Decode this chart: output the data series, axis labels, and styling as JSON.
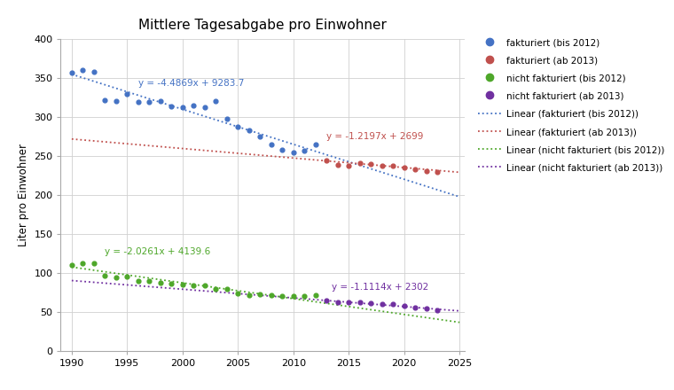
{
  "title": "Mittlere Tagesabgabe pro Einwohner",
  "ylabel": "Liter pro Einwohner",
  "xlim": [
    1989,
    2025.5
  ],
  "ylim": [
    0,
    400
  ],
  "yticks": [
    0,
    50,
    100,
    150,
    200,
    250,
    300,
    350,
    400
  ],
  "xticks": [
    1990,
    1995,
    2000,
    2005,
    2010,
    2015,
    2020,
    2025
  ],
  "fakturiert_bis2012_x": [
    1990,
    1991,
    1992,
    1993,
    1994,
    1995,
    1996,
    1997,
    1998,
    1999,
    2000,
    2001,
    2002,
    2003,
    2004,
    2005,
    2006,
    2007,
    2008,
    2009,
    2010,
    2011,
    2012
  ],
  "fakturiert_bis2012_y": [
    357,
    360,
    358,
    322,
    320,
    330,
    319,
    319,
    320,
    314,
    313,
    315,
    313,
    321,
    298,
    288,
    283,
    275,
    265,
    258,
    255,
    257,
    265
  ],
  "fakturiert_ab2013_x": [
    2013,
    2014,
    2015,
    2016,
    2017,
    2018,
    2019,
    2020,
    2021,
    2022,
    2023
  ],
  "fakturiert_ab2013_y": [
    244,
    239,
    237,
    241,
    240,
    238,
    237,
    235,
    233,
    231,
    229
  ],
  "nicht_fakturiert_bis2012_x": [
    1990,
    1991,
    1992,
    1993,
    1994,
    1995,
    1996,
    1997,
    1998,
    1999,
    2000,
    2001,
    2002,
    2003,
    2004,
    2005,
    2006,
    2007,
    2008,
    2009,
    2010,
    2011,
    2012
  ],
  "nicht_fakturiert_bis2012_y": [
    110,
    113,
    112,
    97,
    94,
    96,
    90,
    90,
    88,
    86,
    85,
    84,
    84,
    80,
    80,
    74,
    72,
    73,
    72,
    71,
    70,
    71,
    72
  ],
  "nicht_fakturiert_ab2013_x": [
    2013,
    2014,
    2015,
    2016,
    2017,
    2018,
    2019,
    2020,
    2021,
    2022,
    2023
  ],
  "nicht_fakturiert_ab2013_y": [
    65,
    63,
    62,
    62,
    61,
    60,
    60,
    58,
    56,
    54,
    52
  ],
  "color_fakturiert_bis2012": "#4472C4",
  "color_fakturiert_ab2013": "#C0504D",
  "color_nicht_fakturiert_bis2012": "#4EA72A",
  "color_nicht_fakturiert_ab2013": "#7030A0",
  "trendline_fakturiert_bis2012_slope": -4.4869,
  "trendline_fakturiert_bis2012_intercept": 9283.7,
  "trendline_fakturiert_bis2012_xstart": 1990,
  "trendline_fakturiert_bis2012_xend": 2025,
  "trendline_fakturiert_ab2013_slope": -1.2197,
  "trendline_fakturiert_ab2013_intercept": 2699,
  "trendline_fakturiert_ab2013_xstart": 1990,
  "trendline_fakturiert_ab2013_xend": 2025,
  "trendline_nicht_fakturiert_bis2012_slope": -2.0261,
  "trendline_nicht_fakturiert_bis2012_intercept": 4139.6,
  "trendline_nicht_fakturiert_bis2012_xstart": 1990,
  "trendline_nicht_fakturiert_bis2012_xend": 2025,
  "trendline_nicht_fakturiert_ab2013_slope": -1.1114,
  "trendline_nicht_fakturiert_ab2013_intercept": 2302,
  "trendline_nicht_fakturiert_ab2013_xstart": 1990,
  "trendline_nicht_fakturiert_ab2013_xend": 2025,
  "eq_fakturiert_bis2012": "y = -4.4869x + 9283.7",
  "eq_fakturiert_bis2012_x": 1996,
  "eq_fakturiert_bis2012_y": 340,
  "eq_fakturiert_ab2013": "y = -1.2197x + 2699",
  "eq_fakturiert_ab2013_x": 2013,
  "eq_fakturiert_ab2013_y": 272,
  "eq_nicht_fakturiert_bis2012": "y = -2.0261x + 4139.6",
  "eq_nicht_fakturiert_bis2012_x": 1993,
  "eq_nicht_fakturiert_bis2012_y": 124,
  "eq_nicht_fakturiert_ab2013": "y = -1.1114x + 2302",
  "eq_nicht_fakturiert_ab2013_x": 2013.5,
  "eq_nicht_fakturiert_ab2013_y": 78,
  "legend_entries": [
    "fakturiert (bis 2012)",
    "fakturiert (ab 2013)",
    "nicht fakturiert (bis 2012)",
    "nicht fakturiert (ab 2013)",
    "Linear (fakturiert (bis 2012))",
    "Linear (fakturiert (ab 2013))",
    "Linear (nicht fakturiert (bis 2012))",
    "Linear (nicht fakturiert (ab 2013))"
  ],
  "background_color": "#FFFFFF",
  "grid_color": "#D0D0D0"
}
